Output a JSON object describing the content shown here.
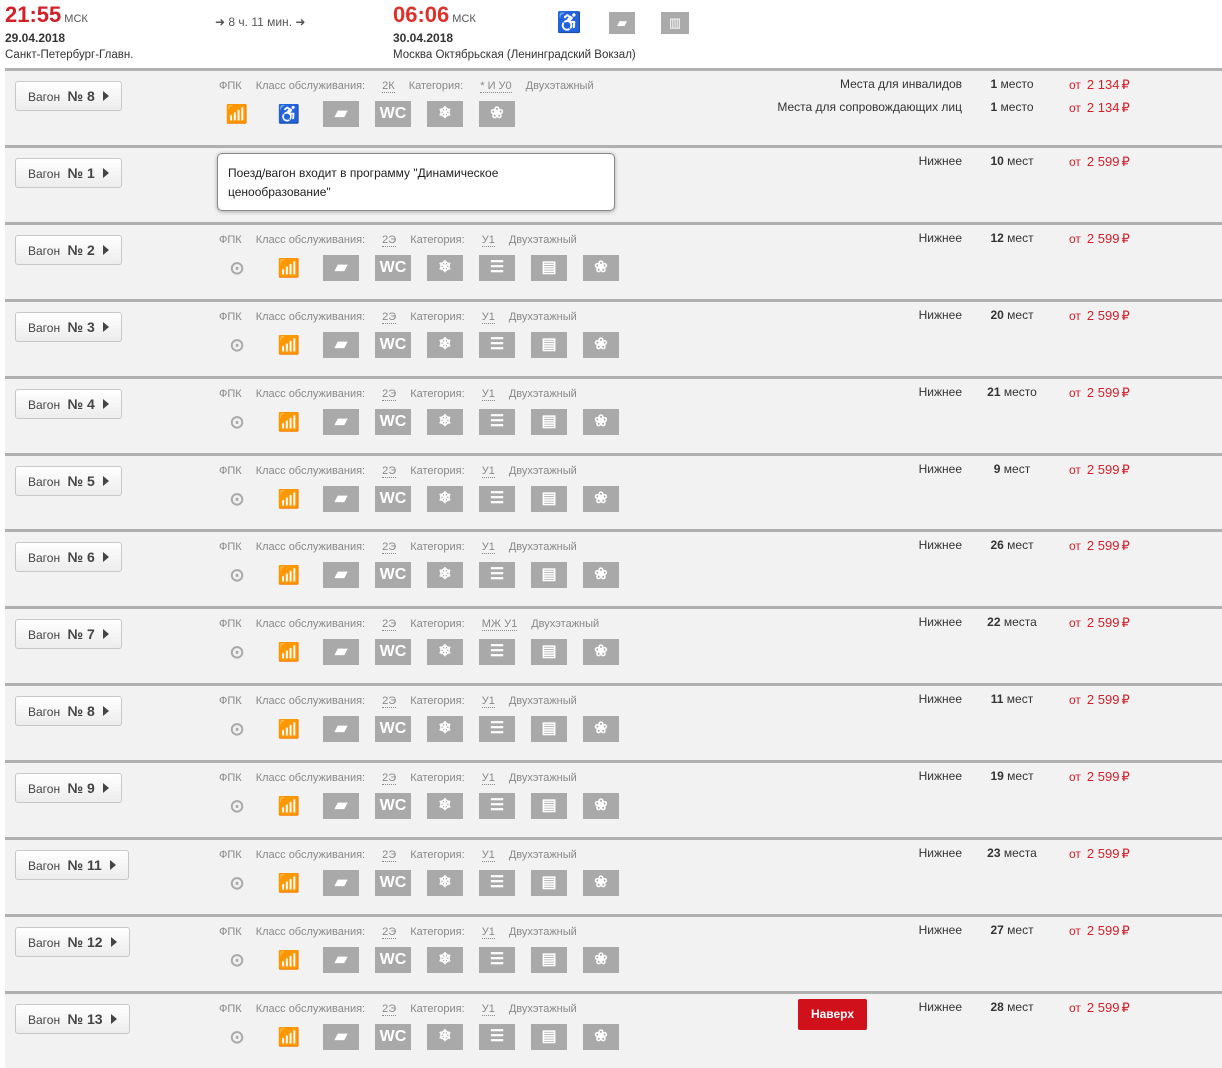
{
  "trip": {
    "dep_time": "21:55",
    "dep_tz": "МСК",
    "dep_date": "29.04.2018",
    "dep_station": "Санкт-Петербург-Главн.",
    "duration": "➜ 8 ч. 11 мин. ➜",
    "arr_time": "06:06",
    "arr_tz": "МСК",
    "arr_date": "30.04.2018",
    "arr_station": "Москва Октябрьская (Ленинградский Вокзал)",
    "icons": [
      "wheelchair-icon",
      "bag-icon",
      "luggage-icon"
    ]
  },
  "labels": {
    "wagon": "Вагон",
    "num": "№",
    "carrier": "ФПК",
    "class": "Класс обслуживания:",
    "category": "Категория:",
    "from": "от",
    "currency": "₽",
    "tooltip": "Поезд/вагон входит в программу \"Динамическое ценообразование\"",
    "to_top": "Наверх"
  },
  "colors": {
    "accent": "#d0202a",
    "separator": "#b0b0b0"
  },
  "wagons": [
    {
      "num": "8",
      "class": "2К",
      "category": "* И У0",
      "type": "Двухэтажный",
      "icons": [
        "chart",
        "wheelchair",
        "bag",
        "wc",
        "snow",
        "paw"
      ],
      "seats": [
        {
          "label": "Места для инвалидов",
          "count": "1",
          "unit": "место",
          "price": "2 134"
        },
        {
          "label": "Места для сопровождающих лиц",
          "count": "1",
          "unit": "место",
          "price": "2 134"
        }
      ]
    },
    {
      "num": "1",
      "tooltip": true,
      "seats": [
        {
          "label": "Нижнее",
          "count": "10",
          "unit": "мест",
          "price": "2 599"
        }
      ]
    },
    {
      "num": "2",
      "class": "2Э",
      "category": "У1",
      "type": "Двухэтажный",
      "seats": [
        {
          "label": "Нижнее",
          "count": "12",
          "unit": "мест",
          "price": "2 599"
        }
      ]
    },
    {
      "num": "3",
      "class": "2Э",
      "category": "У1",
      "type": "Двухэтажный",
      "seats": [
        {
          "label": "Нижнее",
          "count": "20",
          "unit": "мест",
          "price": "2 599"
        }
      ]
    },
    {
      "num": "4",
      "class": "2Э",
      "category": "У1",
      "type": "Двухэтажный",
      "seats": [
        {
          "label": "Нижнее",
          "count": "21",
          "unit": "место",
          "price": "2 599"
        }
      ]
    },
    {
      "num": "5",
      "class": "2Э",
      "category": "У1",
      "type": "Двухэтажный",
      "seats": [
        {
          "label": "Нижнее",
          "count": "9",
          "unit": "мест",
          "price": "2 599"
        }
      ]
    },
    {
      "num": "6",
      "class": "2Э",
      "category": "У1",
      "type": "Двухэтажный",
      "seats": [
        {
          "label": "Нижнее",
          "count": "26",
          "unit": "мест",
          "price": "2 599"
        }
      ]
    },
    {
      "num": "7",
      "class": "2Э",
      "category": "МЖ У1",
      "type": "Двухэтажный",
      "seats": [
        {
          "label": "Нижнее",
          "count": "22",
          "unit": "места",
          "price": "2 599"
        }
      ]
    },
    {
      "num": "8",
      "class": "2Э",
      "category": "У1",
      "type": "Двухэтажный",
      "seats": [
        {
          "label": "Нижнее",
          "count": "11",
          "unit": "мест",
          "price": "2 599"
        }
      ]
    },
    {
      "num": "9",
      "class": "2Э",
      "category": "У1",
      "type": "Двухэтажный",
      "seats": [
        {
          "label": "Нижнее",
          "count": "19",
          "unit": "мест",
          "price": "2 599"
        }
      ]
    },
    {
      "num": "11",
      "class": "2Э",
      "category": "У1",
      "type": "Двухэтажный",
      "seats": [
        {
          "label": "Нижнее",
          "count": "23",
          "unit": "места",
          "price": "2 599"
        }
      ]
    },
    {
      "num": "12",
      "class": "2Э",
      "category": "У1",
      "type": "Двухэтажный",
      "seats": [
        {
          "label": "Нижнее",
          "count": "27",
          "unit": "мест",
          "price": "2 599"
        }
      ]
    },
    {
      "num": "13",
      "class": "2Э",
      "category": "У1",
      "type": "Двухэтажный",
      "top_button": true,
      "seats": [
        {
          "label": "Нижнее",
          "count": "28",
          "unit": "мест",
          "price": "2 599"
        }
      ]
    }
  ],
  "default_icons": [
    "dining",
    "chart",
    "bag",
    "wc",
    "snow",
    "toothbrush",
    "newspaper",
    "paw"
  ]
}
